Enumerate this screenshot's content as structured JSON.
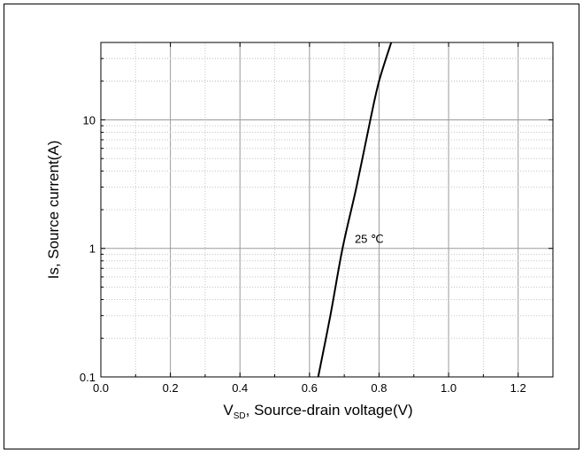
{
  "chart_data": {
    "type": "line",
    "title": "",
    "xlabel": {
      "main": "V",
      "subscript": "SD",
      "rest": ", Source-drain voltage(V)"
    },
    "ylabel": "Is, Source current(A)",
    "xlim": [
      0.0,
      1.3
    ],
    "ylim": [
      0.1,
      40
    ],
    "y_scale": "log",
    "grid": true,
    "x_ticks": [
      {
        "value": 0.0,
        "label": "0.0"
      },
      {
        "value": 0.2,
        "label": "0.2"
      },
      {
        "value": 0.4,
        "label": "0.4"
      },
      {
        "value": 0.6,
        "label": "0.6"
      },
      {
        "value": 0.8,
        "label": "0.8"
      },
      {
        "value": 1.0,
        "label": "1.0"
      },
      {
        "value": 1.2,
        "label": "1.2"
      }
    ],
    "y_ticks": [
      {
        "value": 0.1,
        "label": "0.1"
      },
      {
        "value": 1,
        "label": "1"
      },
      {
        "value": 10,
        "label": "10"
      }
    ],
    "series": [
      {
        "annotation": "25 ℃",
        "color": "#000000",
        "points": [
          {
            "x": 0.625,
            "y": 0.1
          },
          {
            "x": 0.66,
            "y": 0.3
          },
          {
            "x": 0.695,
            "y": 1.0
          },
          {
            "x": 0.735,
            "y": 3.0
          },
          {
            "x": 0.775,
            "y": 10.0
          },
          {
            "x": 0.8,
            "y": 20.0
          },
          {
            "x": 0.835,
            "y": 40.0
          }
        ]
      }
    ],
    "annotations": [
      {
        "text": "25 ℃",
        "x": 0.73,
        "y": 1.1
      }
    ]
  }
}
